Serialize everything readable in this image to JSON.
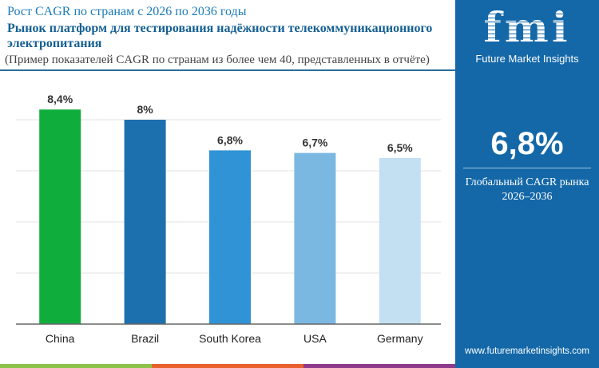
{
  "header": {
    "subtitle": "Рост CAGR по странам с 2026 по 2036 годы",
    "title": "Рынок платформ для тестирования надёжности телекоммуникационного электропитания",
    "note": "(Пример показателей CAGR по странам из более чем 40, представленных в отчёте)"
  },
  "sidebar": {
    "logo": "fmi",
    "brand": "Future Market Insights",
    "value": "6,8%",
    "label_line1": "Глобальный CAGR рынка",
    "label_line2": "2026–2036",
    "url": "www.futuremarketinsights.com"
  },
  "colors": {
    "sidebar": "#1468a8",
    "stripes": [
      "#8bc34a",
      "#e8602c",
      "#8e3a8c"
    ]
  },
  "chart_data": {
    "type": "bar",
    "categories": [
      "China",
      "Brazil",
      "South Korea",
      "USA",
      "Germany"
    ],
    "values": [
      8.4,
      8.0,
      6.8,
      6.7,
      6.5
    ],
    "data_labels": [
      "8,4%",
      "8%",
      "6,8%",
      "6,7%",
      "6,5%"
    ],
    "colors": [
      "#0fae3c",
      "#1d70ae",
      "#2f93d6",
      "#7bb8e1",
      "#c3e0f2"
    ],
    "ylim": [
      0,
      10
    ],
    "grid": true,
    "y_axis_visible": false,
    "legend": "none",
    "xlabel": "",
    "ylabel": ""
  }
}
